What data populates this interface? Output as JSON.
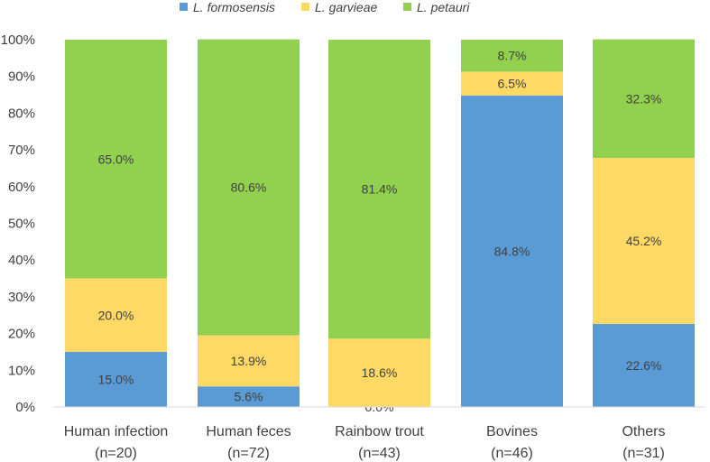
{
  "chart_data": {
    "type": "bar",
    "stacked": true,
    "categories": [
      [
        "Human infection",
        "(n=20)"
      ],
      [
        "Human feces",
        "(n=72)"
      ],
      [
        "Rainbow trout",
        "(n=43)"
      ],
      [
        "Bovines",
        "(n=46)"
      ],
      [
        "Others",
        "(n=31)"
      ]
    ],
    "series": [
      {
        "name": "L. formosensis",
        "color": "#5b9bd5",
        "values": [
          15.0,
          5.6,
          0.0,
          84.8,
          22.6
        ],
        "labels": [
          "15.0%",
          "5.6%",
          "0.0%",
          "84.8%",
          "22.6%"
        ]
      },
      {
        "name": "L. garvieae",
        "color": "#ffd966",
        "values": [
          20.0,
          13.9,
          18.6,
          6.5,
          45.2
        ],
        "labels": [
          "20.0%",
          "13.9%",
          "18.6%",
          "6.5%",
          "45.2%"
        ]
      },
      {
        "name": "L. petauri",
        "color": "#92d050",
        "values": [
          65.0,
          80.6,
          81.4,
          8.7,
          32.3
        ],
        "labels": [
          "65.0%",
          "80.6%",
          "81.4%",
          "8.7%",
          "32.3%"
        ]
      }
    ],
    "yticks": [
      "0%",
      "10%",
      "20%",
      "30%",
      "40%",
      "50%",
      "60%",
      "70%",
      "80%",
      "90%",
      "100%"
    ],
    "ylim": [
      0,
      100
    ],
    "legend_position": "top",
    "grid": false
  }
}
